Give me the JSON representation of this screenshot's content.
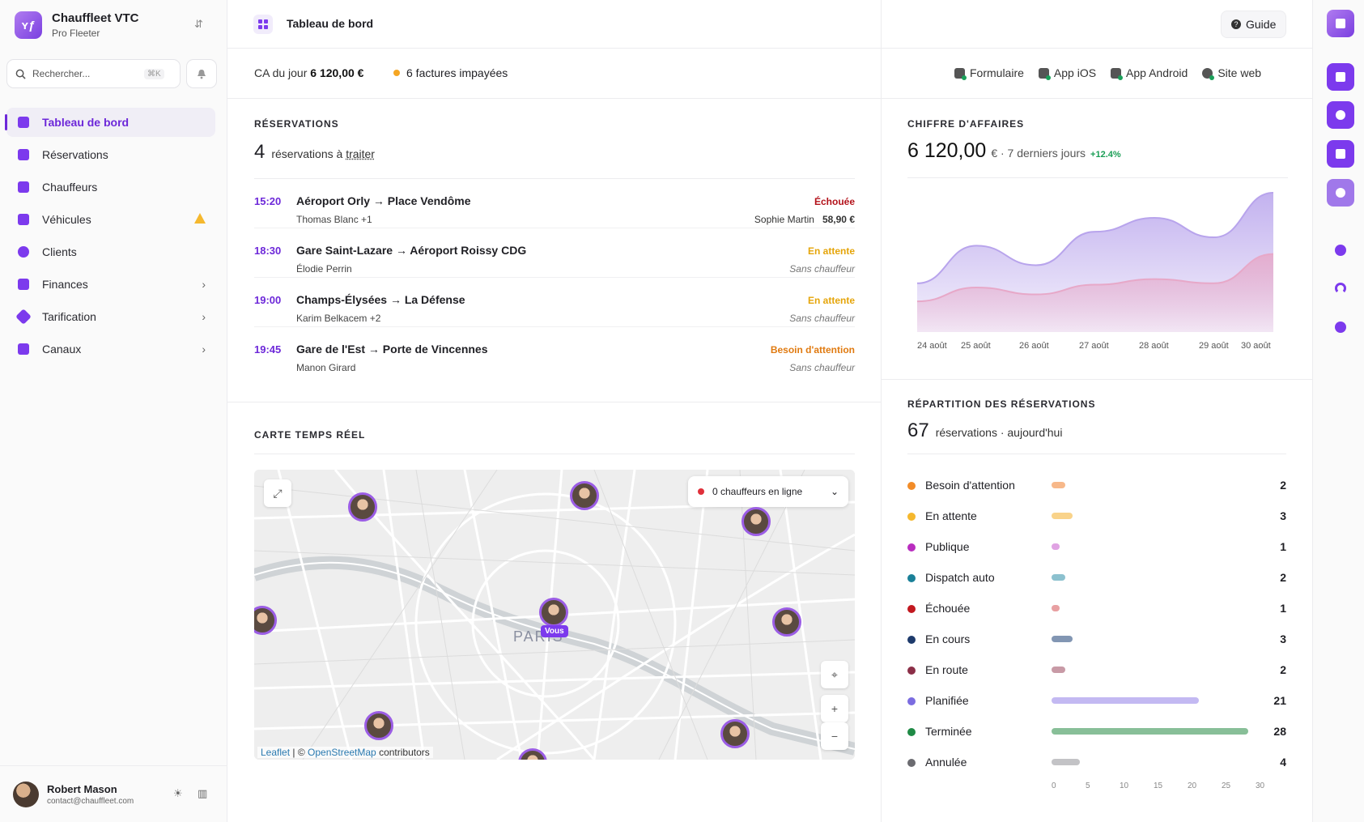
{
  "sidebar": {
    "org_name": "Chauffleet VTC",
    "org_sub": "Pro Fleeter",
    "logo_text": "ʏƒ",
    "search_placeholder": "Rechercher...",
    "search_kbd": "⌘K",
    "items": [
      {
        "label": "Tableau de bord"
      },
      {
        "label": "Réservations"
      },
      {
        "label": "Chauffeurs"
      },
      {
        "label": "Véhicules"
      },
      {
        "label": "Clients"
      },
      {
        "label": "Finances"
      },
      {
        "label": "Tarification"
      },
      {
        "label": "Canaux"
      }
    ],
    "user_name": "Robert Mason",
    "user_email": "contact@chauffleet.com"
  },
  "header": {
    "title": "Tableau de bord",
    "guide": "Guide"
  },
  "info": {
    "ca_label": "CA du jour",
    "ca_value": "6 120,00 €",
    "unpaid": "6 factures impayées",
    "links": [
      "Formulaire",
      "App iOS",
      "App Android",
      "Site web"
    ]
  },
  "reservations": {
    "title": "RÉSERVATIONS",
    "count": "4",
    "count_text": "réservations à",
    "count_link": "traiter",
    "rows": [
      {
        "time": "15:20",
        "route": "Aéroport Orly → Place Vendôme",
        "client": "Thomas Blanc +1",
        "status": "Échouée",
        "driver": "Sophie Martin",
        "price": "58,90 €"
      },
      {
        "time": "18:30",
        "route": "Gare Saint-Lazare → Aéroport Roissy CDG",
        "client": "Élodie Perrin",
        "status": "En attente",
        "driver": "Sans chauffeur"
      },
      {
        "time": "19:00",
        "route": "Champs-Élysées → La Défense",
        "client": "Karim Belkacem +2",
        "status": "En attente",
        "driver": "Sans chauffeur"
      },
      {
        "time": "19:45",
        "route": "Gare de l'Est → Porte de Vincennes",
        "client": "Manon Girard",
        "status": "Besoin d'attention",
        "driver": "Sans chauffeur"
      }
    ]
  },
  "map": {
    "title": "CARTE TEMPS RÉEL",
    "online": "0 chauffeurs en ligne",
    "you": "Vous",
    "city": "PARIS",
    "attr_leaflet": "Leaflet",
    "attr_sep": "| ©",
    "attr_osm": "OpenStreetMap",
    "attr_rest": "contributors"
  },
  "revenue": {
    "title": "CHIFFRE D'AFFAIRES",
    "value": "6 120,00",
    "suffix": "€ · 7 derniers jours",
    "change": "+12.4%"
  },
  "chart_data": {
    "type": "area",
    "categories": [
      "24 août",
      "25 août",
      "26 août",
      "27 août",
      "28 août",
      "29 août",
      "30 août"
    ],
    "series": [
      {
        "values": [
          0.35,
          0.62,
          0.48,
          0.72,
          0.82,
          0.68,
          1.0
        ],
        "color": "#b8a4ec"
      },
      {
        "values": [
          0.22,
          0.32,
          0.27,
          0.34,
          0.38,
          0.35,
          0.56
        ],
        "color": "#e7a8c8"
      }
    ]
  },
  "repartition": {
    "title": "RÉPARTITION DES RÉSERVATIONS",
    "count": "67",
    "count_text": "réservations · aujourd'hui",
    "axis": [
      "0",
      "5",
      "10",
      "15",
      "20",
      "25",
      "30"
    ],
    "items": [
      {
        "label": "Besoin d'attention",
        "value": 2,
        "color": "#f28c28",
        "bar": "#f7b88a"
      },
      {
        "label": "En attente",
        "value": 3,
        "color": "#f5b82e",
        "bar": "#f9d38a"
      },
      {
        "label": "Publique",
        "value": 1,
        "color": "#b92dbf",
        "bar": "#e0a3e3"
      },
      {
        "label": "Dispatch auto",
        "value": 2,
        "color": "#1a8098",
        "bar": "#8cc1cf"
      },
      {
        "label": "Échouée",
        "value": 1,
        "color": "#c2181f",
        "bar": "#e8a0a2"
      },
      {
        "label": "En cours",
        "value": 3,
        "color": "#1d3a6b",
        "bar": "#8296b3"
      },
      {
        "label": "En route",
        "value": 2,
        "color": "#8b2f47",
        "bar": "#c89aa6"
      },
      {
        "label": "Planifiée",
        "value": 21,
        "color": "#7b6ce0",
        "bar": "#c3b9f2"
      },
      {
        "label": "Terminée",
        "value": 28,
        "color": "#1f8a45",
        "bar": "#88bf98"
      },
      {
        "label": "Annulée",
        "value": 4,
        "color": "#6b6b70",
        "bar": "#c3c3c6"
      }
    ]
  },
  "colors": {
    "accent": "#6d28d9",
    "failed": "#b3121a",
    "waiting": "#e5a50a",
    "attention": "#e07a10"
  }
}
